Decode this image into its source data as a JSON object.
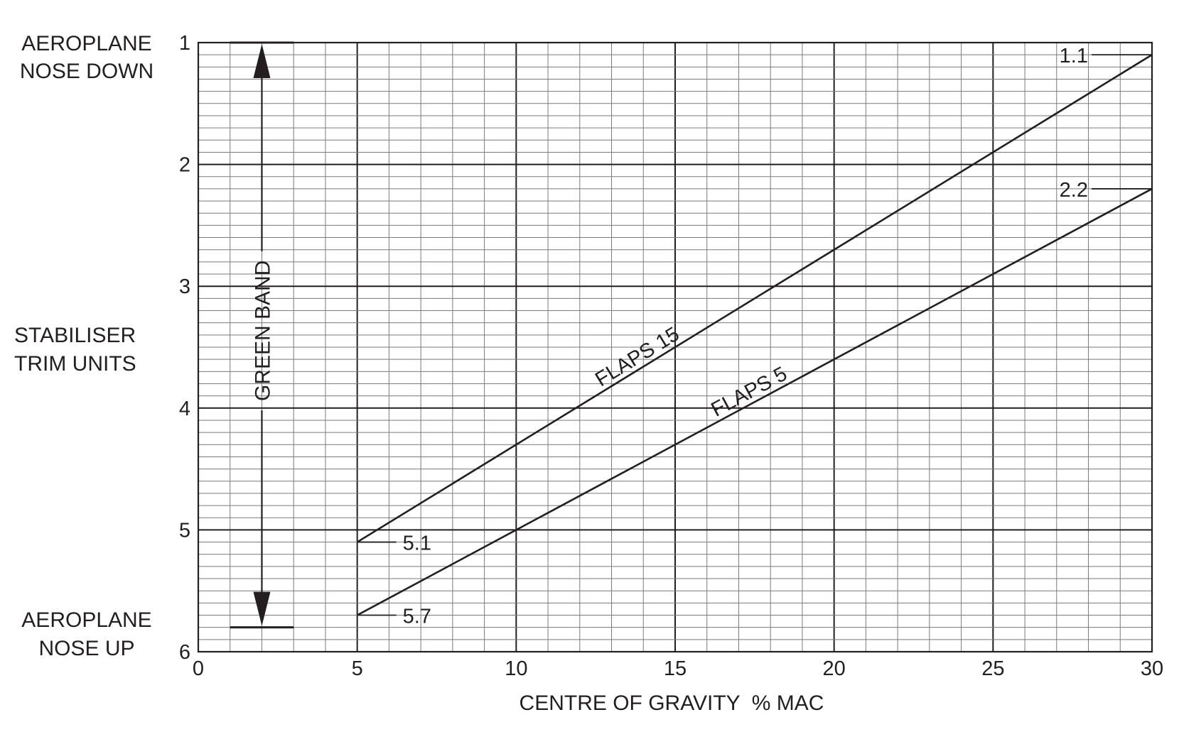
{
  "chart_data": {
    "type": "line",
    "xlabel": "CENTRE OF GRAVITY  % MAC",
    "ylabel": [
      "STABILISER",
      "TRIM UNITS"
    ],
    "y_top_label": [
      "AEROPLANE",
      "NOSE DOWN"
    ],
    "y_bottom_label": [
      "AEROPLANE",
      "NOSE UP"
    ],
    "xlim": [
      0,
      30
    ],
    "ylim": [
      1,
      6
    ],
    "y_inverted": true,
    "x_ticks": [
      "0",
      "5",
      "10",
      "15",
      "20",
      "25",
      "30"
    ],
    "y_ticks": [
      "1",
      "2",
      "3",
      "4",
      "5",
      "6"
    ],
    "grid": true,
    "series": [
      {
        "name": "FLAPS 15",
        "x": [
          5,
          30
        ],
        "y": [
          5.1,
          1.1
        ],
        "start_label": "5.1",
        "end_label": "1.1"
      },
      {
        "name": "FLAPS 5",
        "x": [
          5,
          30
        ],
        "y": [
          5.7,
          2.2
        ],
        "start_label": "5.7",
        "end_label": "2.2"
      }
    ],
    "green_band": {
      "label": "GREEN BAND",
      "x": 2,
      "from": 1,
      "to": 5.8
    }
  }
}
